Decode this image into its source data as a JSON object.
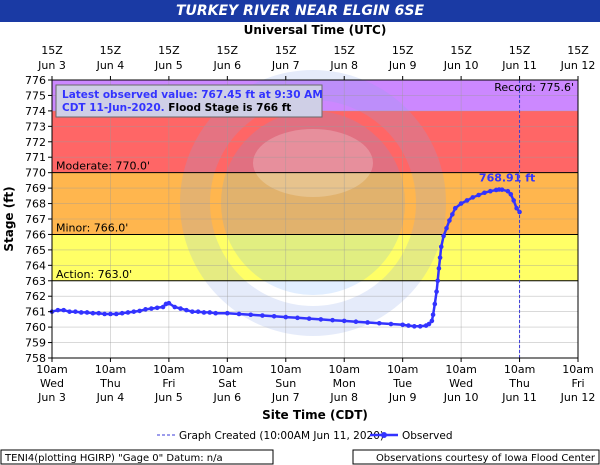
{
  "title": "TURKEY RIVER NEAR ELGIN 6SE",
  "chart_data": {
    "type": "line",
    "title": "TURKEY RIVER NEAR ELGIN 6SE",
    "top_axis_title": "Universal Time (UTC)",
    "xlabel": "Site Time (CDT)",
    "ylabel": "Stage (ft)",
    "ylim": [
      758,
      776
    ],
    "yticks": [
      758,
      759,
      760,
      761,
      762,
      763,
      764,
      765,
      766,
      767,
      768,
      769,
      770,
      771,
      772,
      773,
      774,
      775,
      776
    ],
    "x_day_start": [
      0,
      1,
      2,
      3,
      4,
      5,
      6,
      7,
      8,
      9
    ],
    "days": [
      {
        "time": "10am",
        "dow": "Wed",
        "date": "Jun 3"
      },
      {
        "time": "10am",
        "dow": "Thu",
        "date": "Jun 4"
      },
      {
        "time": "10am",
        "dow": "Fri",
        "date": "Jun 5"
      },
      {
        "time": "10am",
        "dow": "Sat",
        "date": "Jun 6"
      },
      {
        "time": "10am",
        "dow": "Sun",
        "date": "Jun 7"
      },
      {
        "time": "10am",
        "dow": "Mon",
        "date": "Jun 8"
      },
      {
        "time": "10am",
        "dow": "Tue",
        "date": "Jun 9"
      },
      {
        "time": "10am",
        "dow": "Wed",
        "date": "Jun 10"
      },
      {
        "time": "10am",
        "dow": "Thu",
        "date": "Jun 11"
      },
      {
        "time": "10am",
        "dow": "Fri",
        "date": "Jun 12"
      }
    ],
    "utc_days": [
      {
        "time": "15Z",
        "date": "Jun 3"
      },
      {
        "time": "15Z",
        "date": "Jun 4"
      },
      {
        "time": "15Z",
        "date": "Jun 5"
      },
      {
        "time": "15Z",
        "date": "Jun 6"
      },
      {
        "time": "15Z",
        "date": "Jun 7"
      },
      {
        "time": "15Z",
        "date": "Jun 8"
      },
      {
        "time": "15Z",
        "date": "Jun 9"
      },
      {
        "time": "15Z",
        "date": "Jun 10"
      },
      {
        "time": "15Z",
        "date": "Jun 11"
      },
      {
        "time": "15Z",
        "date": "Jun 12"
      }
    ],
    "bands": [
      {
        "from": 758,
        "to": 763,
        "color": "#ffffff"
      },
      {
        "from": 763,
        "to": 766,
        "color": "#ffff66"
      },
      {
        "from": 766,
        "to": 770,
        "color": "#ffb64e"
      },
      {
        "from": 770,
        "to": 774,
        "color": "#ff6666"
      },
      {
        "from": 774,
        "to": 776,
        "color": "#cc88ff"
      }
    ],
    "thresholds": [
      {
        "label": "Action: 763.0'",
        "value": 763.0
      },
      {
        "label": "Minor: 766.0'",
        "value": 766.0
      },
      {
        "label": "Moderate: 770.0'",
        "value": 770.0
      }
    ],
    "record": {
      "label": "Record: 775.6'",
      "value": 775.6
    },
    "peak_label": "768.91 ft",
    "peak": {
      "x": 7.65,
      "y": 768.91
    },
    "graph_created_x": 8.0,
    "observed": [
      [
        0.0,
        761.0
      ],
      [
        0.1,
        761.1
      ],
      [
        0.2,
        761.1
      ],
      [
        0.3,
        761.0
      ],
      [
        0.4,
        761.0
      ],
      [
        0.5,
        760.95
      ],
      [
        0.6,
        760.95
      ],
      [
        0.7,
        760.9
      ],
      [
        0.8,
        760.9
      ],
      [
        0.9,
        760.85
      ],
      [
        1.0,
        760.85
      ],
      [
        1.1,
        760.85
      ],
      [
        1.2,
        760.9
      ],
      [
        1.3,
        760.95
      ],
      [
        1.4,
        761.0
      ],
      [
        1.5,
        761.05
      ],
      [
        1.6,
        761.15
      ],
      [
        1.7,
        761.2
      ],
      [
        1.8,
        761.25
      ],
      [
        1.9,
        761.3
      ],
      [
        1.95,
        761.5
      ],
      [
        2.0,
        761.55
      ],
      [
        2.1,
        761.3
      ],
      [
        2.2,
        761.2
      ],
      [
        2.3,
        761.1
      ],
      [
        2.4,
        761.0
      ],
      [
        2.5,
        761.0
      ],
      [
        2.6,
        760.95
      ],
      [
        2.7,
        760.95
      ],
      [
        2.8,
        760.9
      ],
      [
        3.0,
        760.9
      ],
      [
        3.2,
        760.85
      ],
      [
        3.4,
        760.8
      ],
      [
        3.6,
        760.75
      ],
      [
        3.8,
        760.7
      ],
      [
        4.0,
        760.65
      ],
      [
        4.2,
        760.6
      ],
      [
        4.4,
        760.55
      ],
      [
        4.6,
        760.5
      ],
      [
        4.8,
        760.45
      ],
      [
        5.0,
        760.4
      ],
      [
        5.2,
        760.35
      ],
      [
        5.4,
        760.3
      ],
      [
        5.6,
        760.25
      ],
      [
        5.8,
        760.2
      ],
      [
        6.0,
        760.15
      ],
      [
        6.1,
        760.1
      ],
      [
        6.2,
        760.05
      ],
      [
        6.3,
        760.05
      ],
      [
        6.4,
        760.1
      ],
      [
        6.45,
        760.2
      ],
      [
        6.5,
        760.4
      ],
      [
        6.52,
        760.8
      ],
      [
        6.55,
        761.5
      ],
      [
        6.58,
        762.3
      ],
      [
        6.6,
        763.0
      ],
      [
        6.62,
        763.8
      ],
      [
        6.64,
        764.5
      ],
      [
        6.66,
        765.2
      ],
      [
        6.7,
        765.9
      ],
      [
        6.75,
        766.4
      ],
      [
        6.8,
        766.9
      ],
      [
        6.85,
        767.3
      ],
      [
        6.9,
        767.7
      ],
      [
        7.0,
        768.0
      ],
      [
        7.1,
        768.2
      ],
      [
        7.2,
        768.4
      ],
      [
        7.3,
        768.55
      ],
      [
        7.4,
        768.7
      ],
      [
        7.5,
        768.8
      ],
      [
        7.6,
        768.88
      ],
      [
        7.65,
        768.91
      ],
      [
        7.7,
        768.9
      ],
      [
        7.8,
        768.8
      ],
      [
        7.85,
        768.6
      ],
      [
        7.9,
        768.2
      ],
      [
        7.95,
        767.7
      ],
      [
        8.0,
        767.45
      ]
    ],
    "info_box": {
      "line1": "Latest observed value: 767.45 ft at 9:30 AM",
      "line2_date": "CDT 11-Jun-2020.",
      "line2_flood": "Flood Stage is 766 ft"
    },
    "legend": {
      "graph_created": "Graph Created (10:00AM Jun 11, 2020)",
      "observed": "Observed"
    },
    "footer_left": "TENI4(plotting HGIRP) \"Gage 0\" Datum: n/a",
    "footer_right": "Observations courtesy of Iowa Flood Center",
    "watermark": "NATIONAL OCEANIC AND ATMOSPHERIC ADMINISTRATION - U.S. DEPARTMENT OF COMMERCE - NOAA",
    "grid": true
  }
}
